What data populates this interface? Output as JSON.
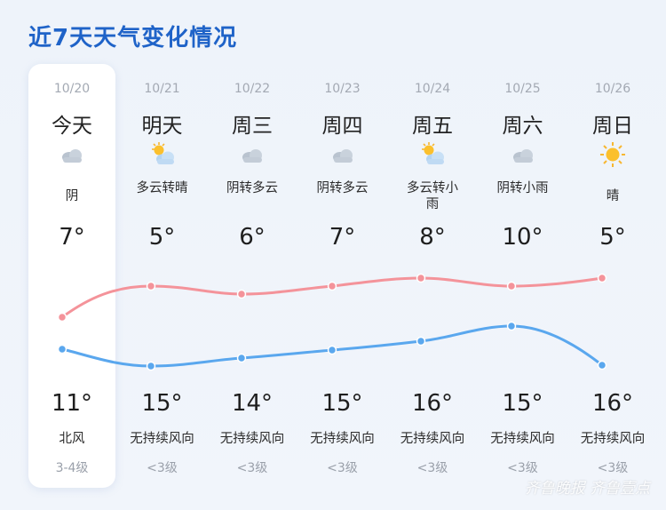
{
  "title": "近7天天气变化情况",
  "watermark": "齐鲁晚报 齐鲁壹点",
  "colors": {
    "high_line": "#f4939a",
    "low_line": "#5aa7ee",
    "title": "#1f63c8"
  },
  "days": [
    {
      "date": "10/20",
      "day": "今天",
      "icon": "cloud-icon",
      "condition": "阴",
      "high": "7°",
      "low": "11°",
      "wind": "北风",
      "level": "3-4级"
    },
    {
      "date": "10/21",
      "day": "明天",
      "icon": "sun-cloud-icon",
      "condition": "多云转晴",
      "high": "5°",
      "low": "15°",
      "wind": "无持续风向",
      "level": "<3级"
    },
    {
      "date": "10/22",
      "day": "周三",
      "icon": "cloud-icon",
      "condition": "阴转多云",
      "high": "6°",
      "low": "14°",
      "wind": "无持续风向",
      "level": "<3级"
    },
    {
      "date": "10/23",
      "day": "周四",
      "icon": "cloud-icon",
      "condition": "阴转多云",
      "high": "7°",
      "low": "15°",
      "wind": "无持续风向",
      "level": "<3级"
    },
    {
      "date": "10/24",
      "day": "周五",
      "icon": "sun-cloud-icon",
      "condition": "多云转小雨",
      "high": "8°",
      "low": "16°",
      "wind": "无持续风向",
      "level": "<3级"
    },
    {
      "date": "10/25",
      "day": "周六",
      "icon": "cloud-icon",
      "condition": "阴转小雨",
      "high": "10°",
      "low": "15°",
      "wind": "无持续风向",
      "level": "<3级"
    },
    {
      "date": "10/26",
      "day": "周日",
      "icon": "sun-icon",
      "condition": "晴",
      "high": "5°",
      "low": "16°",
      "wind": "无持续风向",
      "level": "<3级"
    }
  ]
}
